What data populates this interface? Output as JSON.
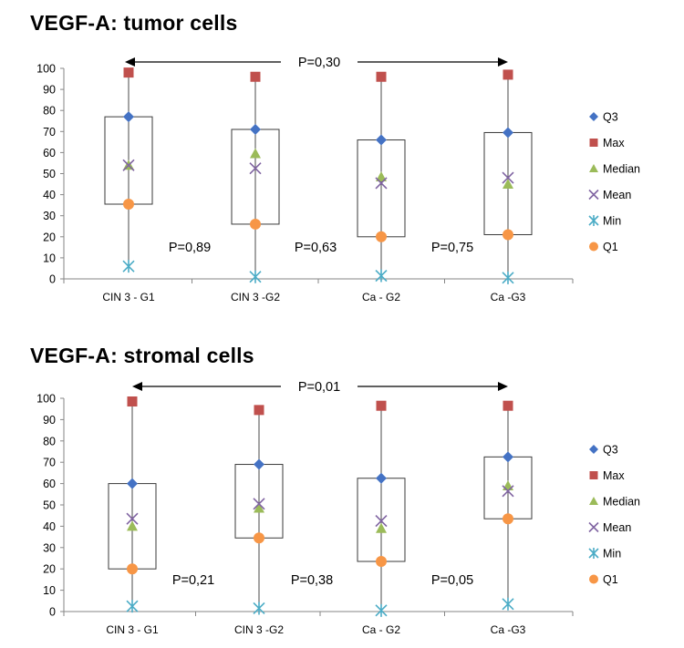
{
  "chart_data": [
    {
      "type": "box",
      "title": "VEGF-A: tumor cells",
      "categories": [
        "CIN 3 - G1",
        "CIN 3 -G2",
        "Ca - G2",
        "Ca -G3"
      ],
      "ylim": [
        0,
        100
      ],
      "yticks": [
        0,
        10,
        20,
        30,
        40,
        50,
        60,
        70,
        80,
        90,
        100
      ],
      "series": [
        {
          "name": "Q3",
          "color": "#4472C4",
          "marker": "diamond",
          "values": [
            77,
            71,
            66,
            69.5
          ]
        },
        {
          "name": "Max",
          "color": "#C0504D",
          "marker": "square",
          "values": [
            98,
            96,
            96,
            97
          ]
        },
        {
          "name": "Median",
          "color": "#9BBB59",
          "marker": "triangle",
          "values": [
            54,
            59.5,
            48.5,
            45
          ]
        },
        {
          "name": "Mean",
          "color": "#8064A2",
          "marker": "x",
          "values": [
            54,
            52.5,
            45.5,
            48
          ]
        },
        {
          "name": "Min",
          "color": "#4BACC6",
          "marker": "star",
          "values": [
            6,
            1,
            1.5,
            0.5
          ]
        },
        {
          "name": "Q1",
          "color": "#F79646",
          "marker": "circle",
          "values": [
            35.5,
            26,
            20,
            21
          ]
        }
      ],
      "annotations": {
        "overall": "P=0,30",
        "pairs": [
          "P=0,89",
          "P=0,63",
          "P=0,75"
        ]
      }
    },
    {
      "type": "box",
      "title": "VEGF-A: stromal cells",
      "categories": [
        "CIN 3 - G1",
        "CIN 3 -G2",
        "Ca - G2",
        "Ca -G3"
      ],
      "ylim": [
        0,
        100
      ],
      "yticks": [
        0,
        10,
        20,
        30,
        40,
        50,
        60,
        70,
        80,
        90,
        100
      ],
      "series": [
        {
          "name": "Q3",
          "color": "#4472C4",
          "marker": "diamond",
          "values": [
            60,
            69,
            62.5,
            72.5
          ]
        },
        {
          "name": "Max",
          "color": "#C0504D",
          "marker": "square",
          "values": [
            98.5,
            94.5,
            96.5,
            96.5
          ]
        },
        {
          "name": "Median",
          "color": "#9BBB59",
          "marker": "triangle",
          "values": [
            40,
            48.5,
            39,
            59
          ]
        },
        {
          "name": "Mean",
          "color": "#8064A2",
          "marker": "x",
          "values": [
            43.5,
            50.5,
            42.5,
            56.5
          ]
        },
        {
          "name": "Min",
          "color": "#4BACC6",
          "marker": "star",
          "values": [
            2.5,
            1.5,
            0.5,
            3.5
          ]
        },
        {
          "name": "Q1",
          "color": "#F79646",
          "marker": "circle",
          "values": [
            20,
            34.5,
            23.5,
            43.5
          ]
        }
      ],
      "annotations": {
        "overall": "P=0,01",
        "pairs": [
          "P=0,21",
          "P=0,38",
          "P=0,05"
        ]
      }
    }
  ]
}
